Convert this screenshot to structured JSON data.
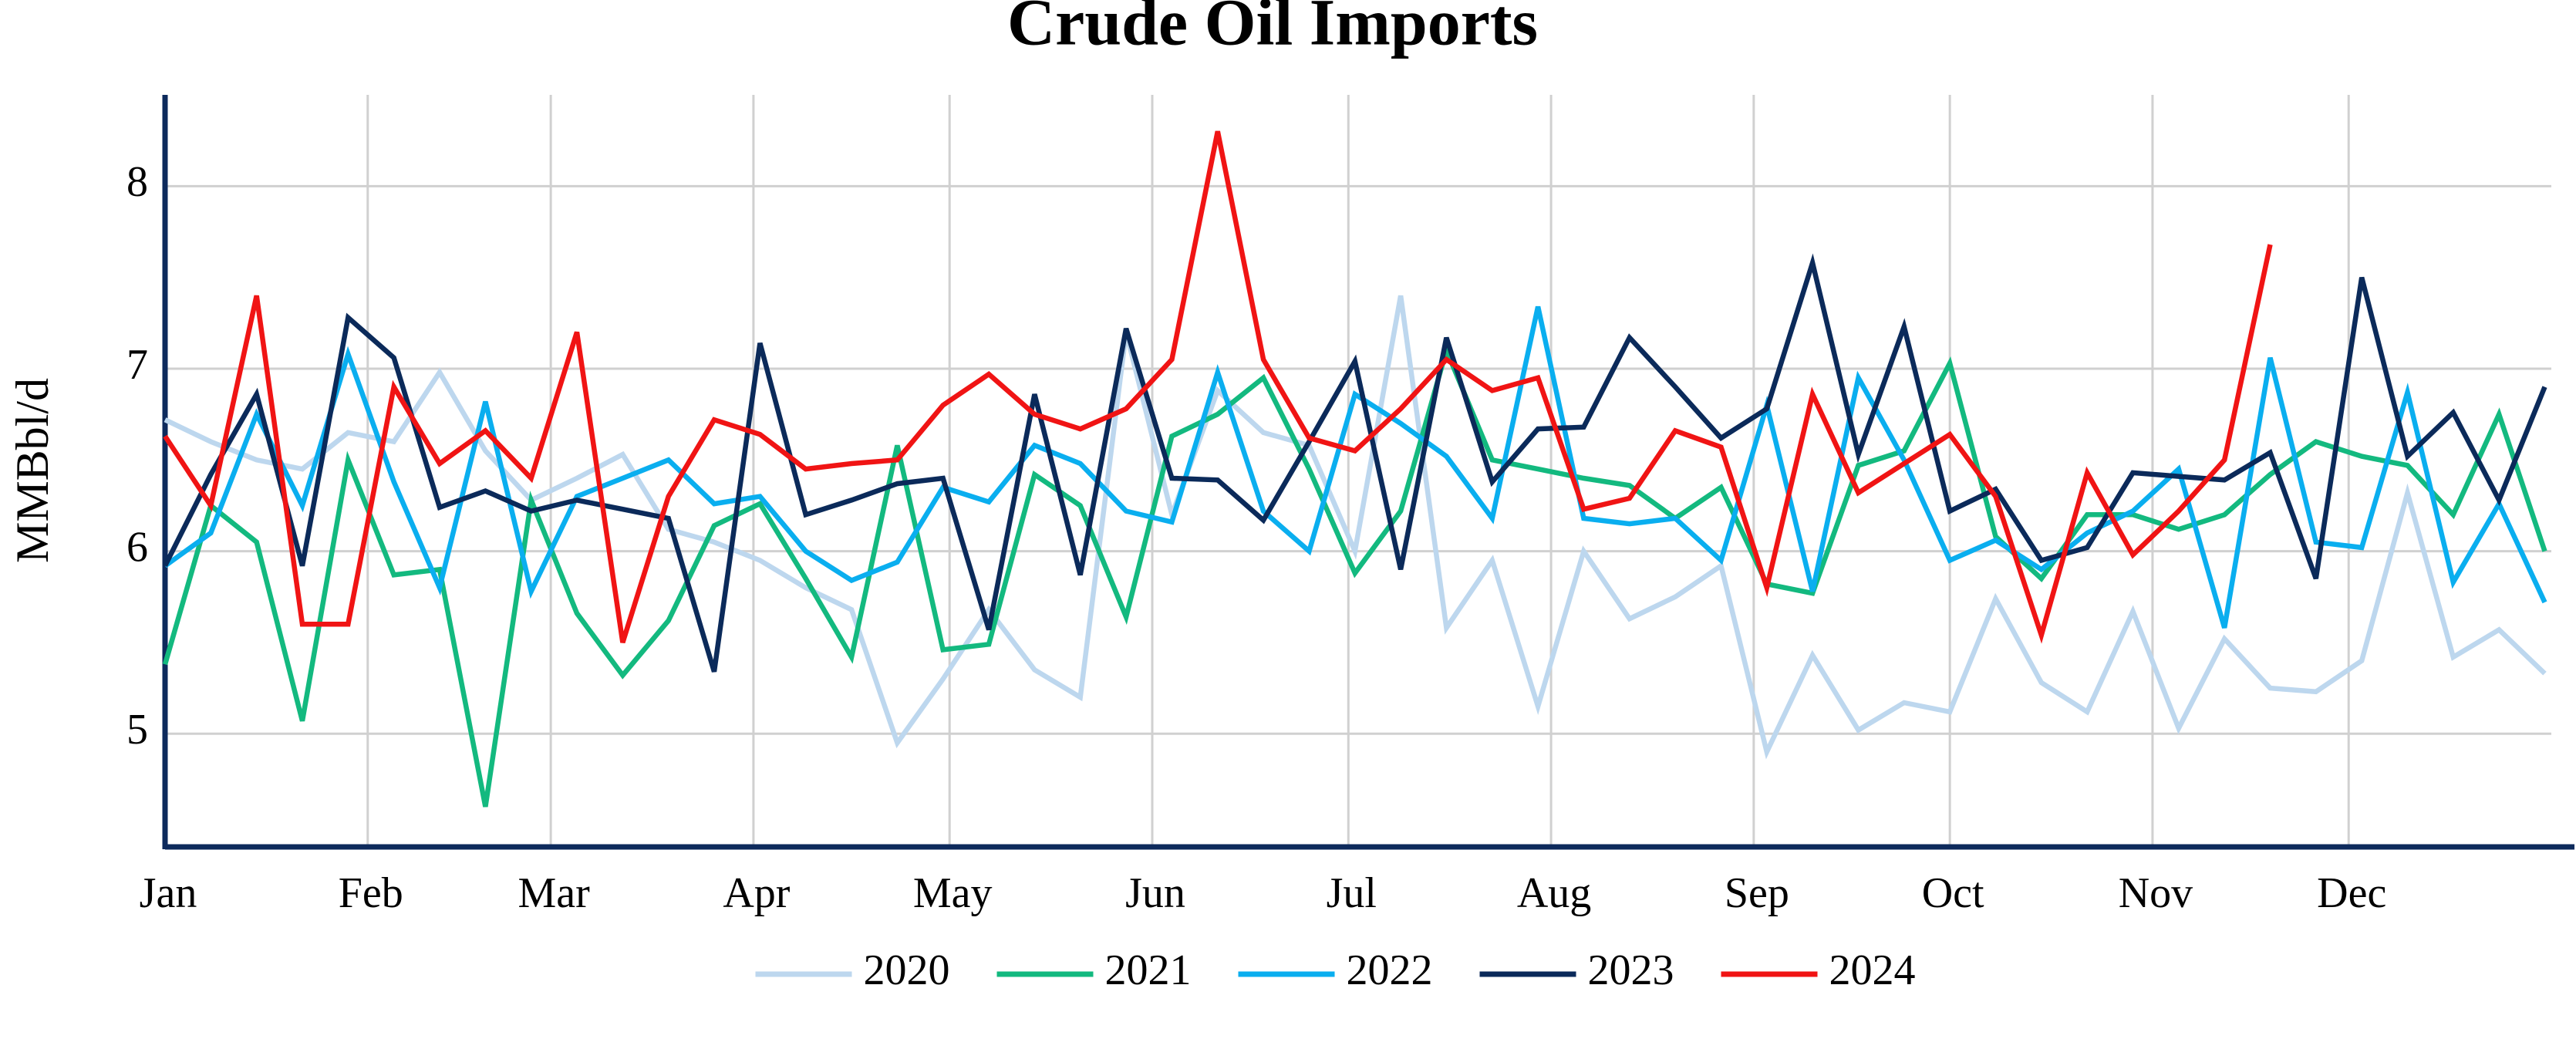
{
  "chart_data": {
    "type": "line",
    "title": "Crude Oil Imports",
    "y_label": "MMBbl/d",
    "x": [
      0,
      7,
      14,
      21,
      28,
      35,
      42,
      49,
      56,
      63,
      70,
      77,
      84,
      91,
      98,
      105,
      112,
      119,
      126,
      133,
      140,
      147,
      154,
      161,
      168,
      175,
      182,
      189,
      196,
      203,
      210,
      217,
      224,
      231,
      238,
      245,
      252,
      259,
      266,
      273,
      280,
      287,
      294,
      301,
      308,
      315,
      322,
      329,
      336,
      343,
      350,
      357,
      364
    ],
    "xlim": [
      0,
      365
    ],
    "xticks": [
      {
        "value": 0,
        "label": "Jan"
      },
      {
        "value": 31,
        "label": "Feb"
      },
      {
        "value": 59,
        "label": "Mar"
      },
      {
        "value": 90,
        "label": "Apr"
      },
      {
        "value": 120,
        "label": "May"
      },
      {
        "value": 151,
        "label": "Jun"
      },
      {
        "value": 181,
        "label": "Jul"
      },
      {
        "value": 212,
        "label": "Aug"
      },
      {
        "value": 243,
        "label": "Sep"
      },
      {
        "value": 273,
        "label": "Oct"
      },
      {
        "value": 304,
        "label": "Nov"
      },
      {
        "value": 334,
        "label": "Dec"
      }
    ],
    "ylim": [
      4.38,
      8.5
    ],
    "yticks": [
      5,
      6,
      7,
      8
    ],
    "grid": true,
    "legend": "bottom",
    "series": [
      {
        "name": "2020",
        "color": "#bdd7ee",
        "values": [
          6.72,
          6.6,
          6.5,
          6.45,
          6.65,
          6.6,
          6.98,
          6.55,
          6.28,
          6.4,
          6.53,
          6.12,
          6.05,
          5.95,
          5.8,
          5.68,
          4.95,
          5.3,
          5.68,
          5.35,
          5.2,
          7.2,
          6.2,
          6.88,
          6.65,
          6.58,
          6.0,
          7.4,
          5.58,
          5.95,
          5.15,
          6.0,
          5.63,
          5.75,
          5.92,
          4.9,
          5.43,
          5.02,
          5.17,
          5.12,
          5.74,
          5.28,
          5.12,
          5.67,
          5.03,
          5.52,
          5.25,
          5.23,
          5.4,
          6.32,
          5.42,
          5.57,
          5.33
        ]
      },
      {
        "name": "2021",
        "color": "#13b97f",
        "values": [
          5.38,
          6.25,
          6.05,
          5.07,
          6.5,
          5.87,
          5.9,
          4.6,
          6.28,
          5.66,
          5.32,
          5.62,
          6.14,
          6.26,
          5.85,
          5.42,
          6.58,
          5.46,
          5.49,
          6.42,
          6.25,
          5.64,
          6.63,
          6.75,
          6.95,
          6.45,
          5.88,
          6.22,
          7.1,
          6.5,
          6.45,
          6.4,
          6.36,
          6.18,
          6.35,
          5.82,
          5.77,
          6.47,
          6.55,
          7.03,
          6.08,
          5.85,
          6.2,
          6.2,
          6.12,
          6.2,
          6.42,
          6.6,
          6.52,
          6.47,
          6.2,
          6.75,
          6.0
        ]
      },
      {
        "name": "2022",
        "color": "#0aaeef",
        "values": [
          5.92,
          6.1,
          6.75,
          6.25,
          7.08,
          6.38,
          5.8,
          6.82,
          5.78,
          6.3,
          6.4,
          6.5,
          6.26,
          6.3,
          6.0,
          5.84,
          5.94,
          6.35,
          6.27,
          6.58,
          6.48,
          6.22,
          6.16,
          6.98,
          6.22,
          6.0,
          6.86,
          6.7,
          6.52,
          6.18,
          7.34,
          6.18,
          6.15,
          6.18,
          5.95,
          6.8,
          5.78,
          6.95,
          6.5,
          5.95,
          6.06,
          5.9,
          6.1,
          6.22,
          6.45,
          5.58,
          7.06,
          6.05,
          6.02,
          6.87,
          5.83,
          6.26,
          5.72
        ]
      },
      {
        "name": "2023",
        "color": "#0b2a5a",
        "values": [
          5.92,
          6.42,
          6.86,
          5.92,
          7.28,
          7.06,
          6.24,
          6.33,
          6.22,
          6.28,
          6.23,
          6.18,
          5.34,
          7.14,
          6.2,
          6.28,
          6.37,
          6.4,
          5.57,
          6.86,
          5.87,
          7.22,
          6.4,
          6.39,
          6.17,
          6.6,
          7.04,
          5.9,
          7.17,
          6.38,
          6.67,
          6.68,
          7.17,
          6.9,
          6.62,
          6.78,
          7.58,
          6.53,
          7.23,
          6.22,
          6.34,
          5.95,
          6.02,
          6.43,
          6.41,
          6.39,
          6.54,
          5.85,
          7.5,
          6.52,
          6.76,
          6.28,
          6.9
        ]
      },
      {
        "name": "2024",
        "color": "#f01414",
        "values": [
          6.63,
          6.25,
          7.4,
          5.6,
          5.6,
          6.9,
          6.48,
          6.66,
          6.4,
          7.2,
          5.5,
          6.3,
          6.72,
          6.64,
          6.45,
          6.48,
          6.5,
          6.8,
          6.97,
          6.75,
          6.67,
          6.78,
          7.05,
          8.3,
          7.05,
          6.62,
          6.55,
          6.78,
          7.05,
          6.88,
          6.95,
          6.23,
          6.29,
          6.66,
          6.57,
          5.8,
          6.86,
          6.32,
          6.48,
          6.64,
          6.3,
          5.54,
          6.43,
          5.98,
          6.22,
          6.5,
          7.68,
          null,
          null,
          null,
          null,
          null,
          null
        ]
      }
    ]
  }
}
